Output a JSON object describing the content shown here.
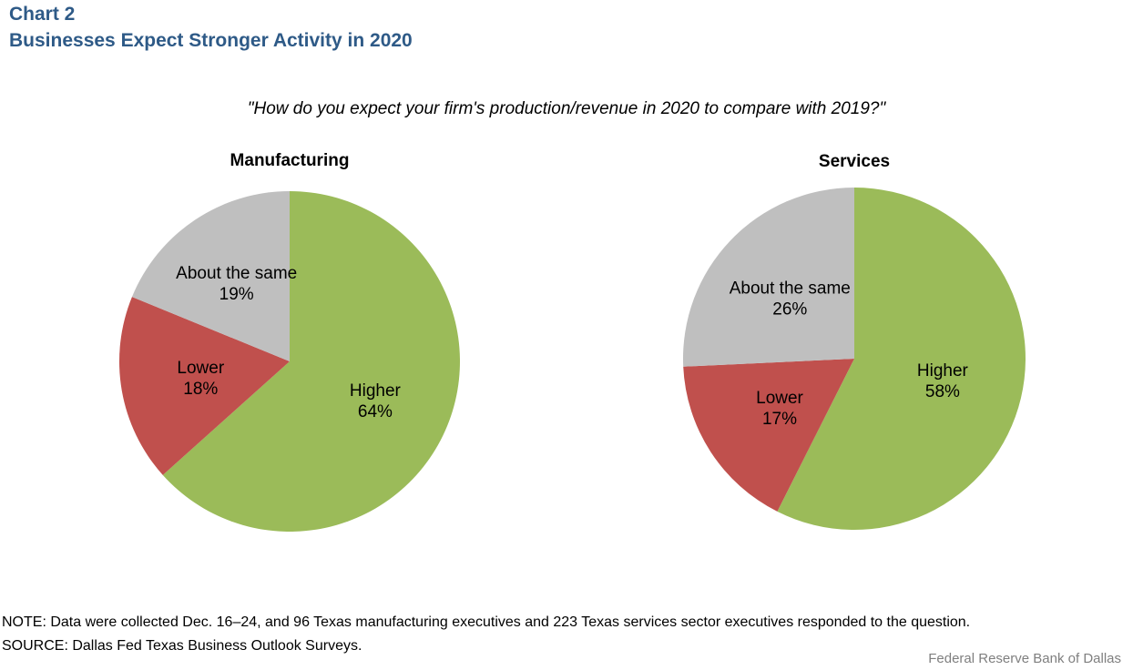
{
  "header": {
    "chart_number": "Chart 2",
    "title": "Businesses Expect Stronger Activity in 2020",
    "question": "\"How do you expect your firm's production/revenue in 2020 to compare with 2019?\""
  },
  "colors": {
    "title": "#2e5a87",
    "higher": "#9bbb59",
    "lower": "#c0504d",
    "same": "#bfbfbf",
    "credit": "#7f7f7f"
  },
  "chart_data": [
    {
      "type": "pie",
      "title": "Manufacturing",
      "unit": "%",
      "slices": [
        {
          "label": "Higher",
          "value": 64,
          "value_label": "64%",
          "color": "#9bbb59"
        },
        {
          "label": "Lower",
          "value": 18,
          "value_label": "18%",
          "color": "#c0504d"
        },
        {
          "label": "About the same",
          "value": 19,
          "value_label": "19%",
          "color": "#bfbfbf"
        }
      ]
    },
    {
      "type": "pie",
      "title": "Services",
      "unit": "%",
      "slices": [
        {
          "label": "Higher",
          "value": 58,
          "value_label": "58%",
          "color": "#9bbb59"
        },
        {
          "label": "Lower",
          "value": 17,
          "value_label": "17%",
          "color": "#c0504d"
        },
        {
          "label": "About the same",
          "value": 26,
          "value_label": "26%",
          "color": "#bfbfbf"
        }
      ]
    }
  ],
  "footer": {
    "note": "NOTE: Data were collected Dec. 16–24, and 96 Texas manufacturing executives and 223 Texas services sector executives responded to the question.",
    "source": "SOURCE: Dallas Fed Texas Business Outlook Surveys.",
    "credit": "Federal Reserve Bank of Dallas"
  }
}
